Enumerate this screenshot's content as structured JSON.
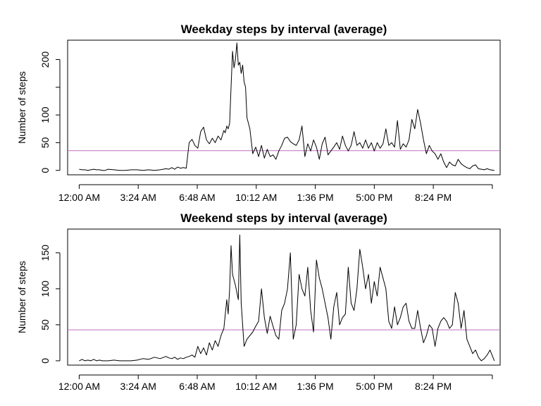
{
  "colors": {
    "line": "#000000",
    "mean_line": "#c070c0",
    "frame": "#000000"
  },
  "chart_data": [
    {
      "type": "line",
      "title": "Weekday steps by interval (average)",
      "xlabel": "",
      "ylabel": "Number of steps",
      "xlim": [
        -40,
        1455
      ],
      "ylim": [
        -8,
        235
      ],
      "x_ticks": [
        0,
        204,
        408,
        612,
        816,
        1020,
        1224,
        1428
      ],
      "x_tick_labels": [
        "12:00 AM",
        "3:24 AM",
        "6:48 AM",
        "10:12 AM",
        "1:36 PM",
        "5:00 PM",
        "8:24 PM",
        ""
      ],
      "y_ticks": [
        0,
        50,
        100,
        150,
        200
      ],
      "y_tick_labels": [
        "0",
        "50",
        "100",
        "",
        "200"
      ],
      "mean_value": 35.6,
      "grid": false,
      "series": [
        {
          "x": [
            0,
            10,
            20,
            30,
            40,
            50,
            60,
            70,
            80,
            90,
            100,
            120,
            140,
            160,
            180,
            200,
            220,
            240,
            260,
            280,
            300,
            310,
            320,
            330,
            340,
            350,
            360,
            370,
            380,
            390,
            400,
            410,
            420,
            430,
            440,
            450,
            460,
            470,
            480,
            490,
            500,
            505,
            510,
            515,
            520,
            525,
            530,
            535,
            540,
            545,
            550,
            555,
            560,
            565,
            570,
            575,
            580,
            590,
            600,
            610,
            620,
            630,
            640,
            650,
            660,
            670,
            680,
            690,
            700,
            710,
            720,
            730,
            740,
            750,
            760,
            770,
            780,
            790,
            800,
            810,
            820,
            830,
            840,
            850,
            860,
            870,
            880,
            890,
            900,
            910,
            920,
            930,
            940,
            950,
            960,
            970,
            980,
            990,
            1000,
            1010,
            1020,
            1030,
            1040,
            1050,
            1060,
            1070,
            1080,
            1090,
            1100,
            1110,
            1120,
            1130,
            1140,
            1150,
            1160,
            1170,
            1180,
            1190,
            1200,
            1210,
            1220,
            1230,
            1240,
            1250,
            1260,
            1270,
            1280,
            1290,
            1300,
            1310,
            1320,
            1330,
            1340,
            1350,
            1360,
            1370,
            1380,
            1390,
            1400,
            1410,
            1420,
            1435
          ],
          "y": [
            2,
            1,
            1,
            0,
            1,
            2,
            1,
            1,
            0,
            0,
            2,
            1,
            0,
            0,
            1,
            1,
            0,
            1,
            0,
            1,
            3,
            2,
            5,
            2,
            6,
            4,
            5,
            4,
            50,
            56,
            45,
            40,
            70,
            78,
            55,
            48,
            58,
            50,
            62,
            55,
            72,
            68,
            80,
            75,
            85,
            150,
            215,
            185,
            200,
            230,
            190,
            195,
            175,
            190,
            160,
            150,
            95,
            75,
            30,
            42,
            25,
            45,
            22,
            38,
            25,
            28,
            20,
            35,
            45,
            58,
            60,
            52,
            48,
            45,
            55,
            80,
            25,
            48,
            35,
            55,
            42,
            20,
            48,
            60,
            28,
            35,
            42,
            50,
            38,
            62,
            45,
            35,
            45,
            70,
            45,
            50,
            40,
            55,
            40,
            50,
            35,
            50,
            40,
            48,
            75,
            45,
            50,
            42,
            90,
            38,
            48,
            42,
            55,
            92,
            75,
            110,
            85,
            55,
            30,
            45,
            35,
            30,
            20,
            30,
            15,
            5,
            15,
            10,
            8,
            20,
            12,
            8,
            5,
            3,
            8,
            10,
            3,
            2,
            1,
            3,
            1,
            0
          ]
        }
      ]
    },
    {
      "type": "line",
      "title": "Weekend steps by interval (average)",
      "xlabel": "",
      "ylabel": "Number of steps",
      "xlim": [
        -40,
        1455
      ],
      "ylim": [
        -6,
        183
      ],
      "x_ticks": [
        0,
        204,
        408,
        612,
        816,
        1020,
        1224,
        1428
      ],
      "x_tick_labels": [
        "12:00 AM",
        "3:24 AM",
        "6:48 AM",
        "10:12 AM",
        "1:36 PM",
        "5:00 PM",
        "8:24 PM",
        ""
      ],
      "y_ticks": [
        0,
        50,
        100,
        150
      ],
      "y_tick_labels": [
        "0",
        "50",
        "100",
        "150"
      ],
      "mean_value": 43,
      "grid": false,
      "series": [
        {
          "x": [
            0,
            10,
            20,
            30,
            40,
            50,
            60,
            70,
            80,
            100,
            120,
            140,
            160,
            180,
            200,
            220,
            240,
            260,
            280,
            300,
            310,
            320,
            330,
            340,
            350,
            360,
            370,
            380,
            390,
            400,
            410,
            420,
            430,
            440,
            450,
            460,
            470,
            480,
            490,
            500,
            510,
            515,
            520,
            525,
            530,
            540,
            550,
            555,
            560,
            570,
            580,
            590,
            600,
            610,
            620,
            630,
            640,
            650,
            660,
            670,
            680,
            690,
            700,
            710,
            720,
            730,
            740,
            750,
            760,
            770,
            780,
            790,
            800,
            810,
            820,
            830,
            840,
            850,
            860,
            870,
            880,
            890,
            900,
            910,
            920,
            930,
            940,
            950,
            960,
            970,
            980,
            990,
            1000,
            1010,
            1020,
            1030,
            1040,
            1050,
            1060,
            1070,
            1080,
            1090,
            1100,
            1110,
            1120,
            1130,
            1140,
            1150,
            1160,
            1170,
            1180,
            1190,
            1200,
            1210,
            1220,
            1230,
            1240,
            1250,
            1260,
            1270,
            1280,
            1290,
            1300,
            1310,
            1320,
            1330,
            1340,
            1350,
            1360,
            1370,
            1380,
            1390,
            1400,
            1410,
            1420,
            1435
          ],
          "y": [
            0,
            2,
            0,
            1,
            0,
            2,
            0,
            1,
            0,
            0,
            1,
            0,
            0,
            0,
            1,
            3,
            2,
            5,
            3,
            6,
            4,
            3,
            5,
            2,
            4,
            3,
            5,
            6,
            8,
            5,
            20,
            10,
            18,
            8,
            25,
            15,
            28,
            20,
            35,
            45,
            85,
            65,
            100,
            160,
            120,
            105,
            85,
            175,
            80,
            20,
            30,
            35,
            40,
            48,
            55,
            100,
            60,
            38,
            62,
            48,
            35,
            30,
            70,
            80,
            100,
            150,
            30,
            50,
            120,
            100,
            90,
            130,
            70,
            40,
            140,
            115,
            100,
            80,
            60,
            30,
            75,
            95,
            50,
            60,
            65,
            130,
            80,
            70,
            100,
            155,
            130,
            100,
            120,
            80,
            110,
            90,
            130,
            115,
            100,
            55,
            45,
            75,
            50,
            60,
            75,
            80,
            55,
            45,
            45,
            70,
            45,
            25,
            35,
            50,
            45,
            20,
            45,
            55,
            60,
            55,
            45,
            50,
            95,
            80,
            45,
            70,
            30,
            20,
            10,
            15,
            5,
            0,
            3,
            8,
            15,
            0
          ]
        }
      ]
    }
  ]
}
